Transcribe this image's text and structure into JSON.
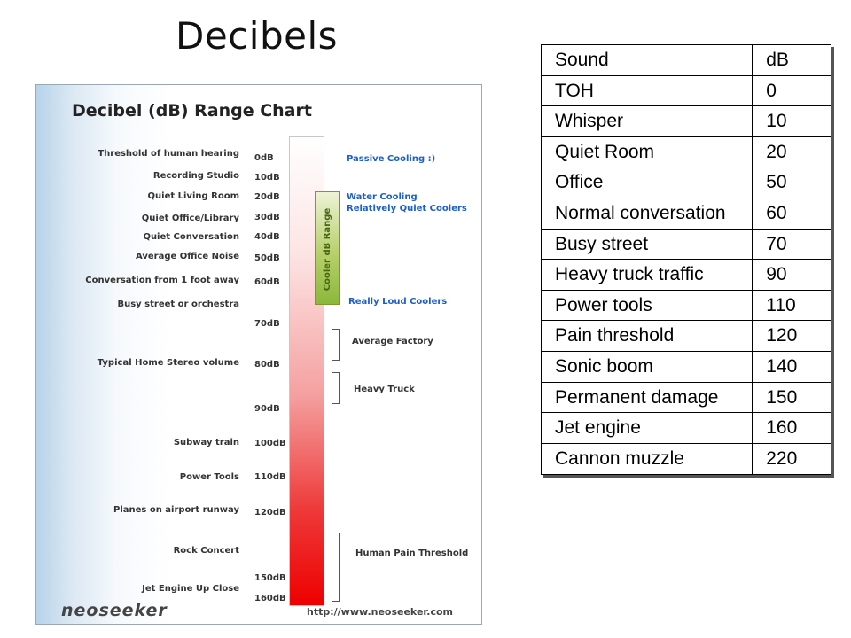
{
  "slide": {
    "title": "Decibels"
  },
  "chart_image": {
    "heading": "Decibel (dB) Range Chart",
    "sound_labels": [
      "Threshold of human hearing",
      "Recording Studio",
      "Quiet Living Room",
      "Quiet Office/Library",
      "Quiet Conversation",
      "Average Office Noise",
      "Conversation from 1 foot away",
      "Busy street or orchestra",
      "Typical Home Stereo volume",
      "Subway train",
      "Power Tools",
      "Planes on airport runway",
      "Rock Concert",
      "Jet Engine Up Close"
    ],
    "db_labels": [
      "0dB",
      "10dB",
      "20dB",
      "30dB",
      "40dB",
      "50dB",
      "60dB",
      "70dB",
      "80dB",
      "90dB",
      "100dB",
      "110dB",
      "120dB",
      "150dB",
      "160dB"
    ],
    "cooler_range_label": "Cooler dB Range",
    "notes": {
      "passive": "Passive Cooling :)",
      "water": "Water Cooling",
      "water2": "Relatively Quiet Coolers",
      "loud": "Really Loud Coolers",
      "factory": "Average Factory",
      "truck": "Heavy Truck",
      "pain": "Human Pain Threshold"
    },
    "footer_logo": "neoseeker",
    "footer_url": "http://www.neoseeker.com"
  },
  "table": {
    "headers": [
      "Sound",
      "dB"
    ],
    "rows": [
      [
        "TOH",
        "0"
      ],
      [
        "Whisper",
        "10"
      ],
      [
        "Quiet Room",
        "20"
      ],
      [
        "Office",
        "50"
      ],
      [
        "Normal conversation",
        "60"
      ],
      [
        "Busy street",
        "70"
      ],
      [
        "Heavy truck traffic",
        "90"
      ],
      [
        "Power tools",
        "110"
      ],
      [
        "Pain threshold",
        "120"
      ],
      [
        "Sonic boom",
        "140"
      ],
      [
        "Permanent damage",
        "150"
      ],
      [
        "Jet engine",
        "160"
      ],
      [
        "Cannon muzzle",
        "220"
      ]
    ]
  }
}
